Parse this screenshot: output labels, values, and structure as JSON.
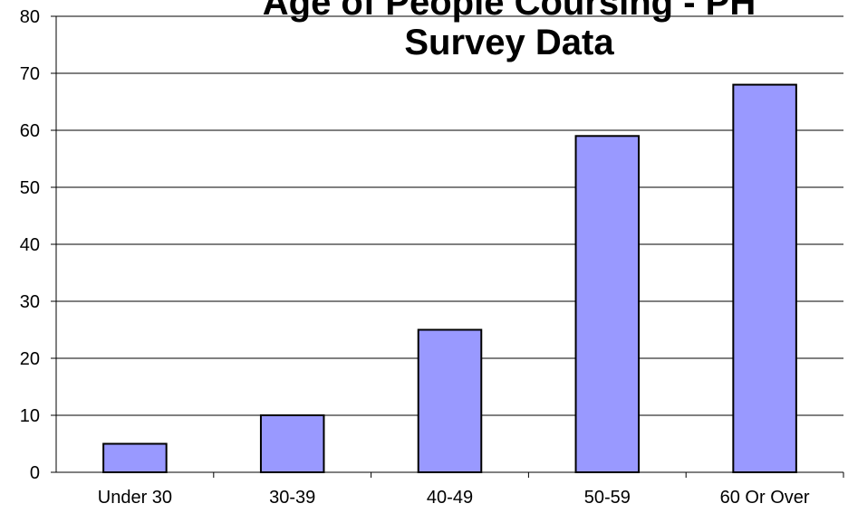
{
  "chart_data": {
    "type": "bar",
    "title_lines": [
      "Age of People Coursing - PH",
      "Survey Data"
    ],
    "categories": [
      "Under 30",
      "30-39",
      "40-49",
      "50-59",
      "60 Or Over"
    ],
    "values": [
      5,
      10,
      25,
      59,
      68
    ],
    "ylim": [
      0,
      80
    ],
    "yticks": [
      0,
      10,
      20,
      30,
      40,
      50,
      60,
      70,
      80
    ],
    "xlabel": "",
    "ylabel": "",
    "grid": true,
    "bar_color": "#9999ff",
    "legend": "none"
  }
}
